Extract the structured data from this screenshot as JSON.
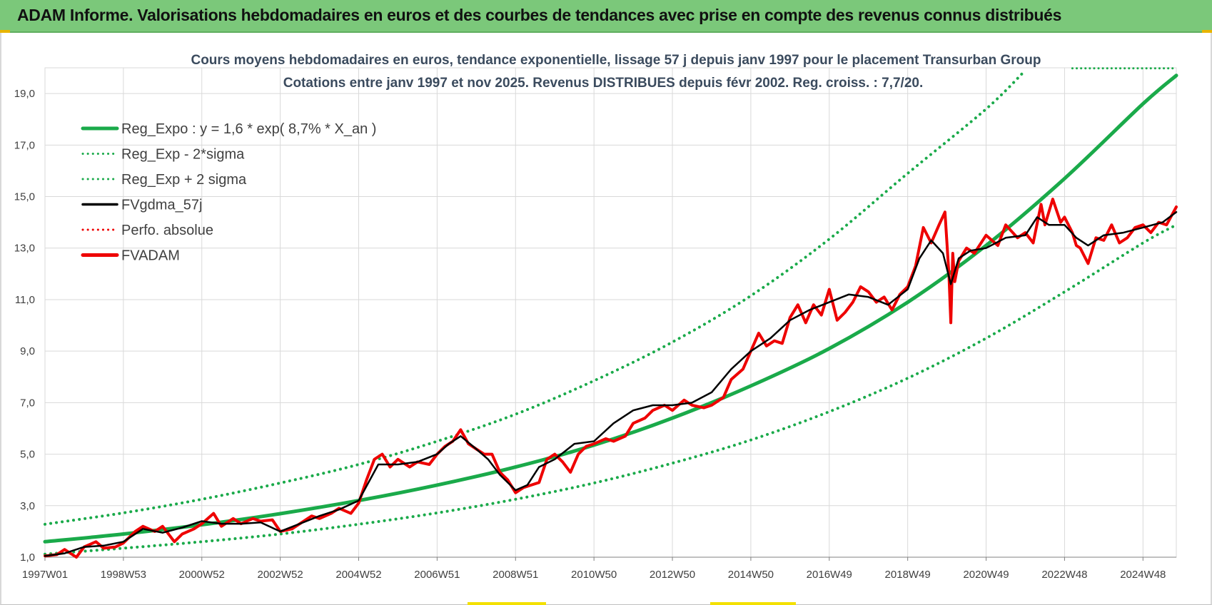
{
  "banner": {
    "title": "ADAM Informe. Valorisations hebdomadaires en euros et des courbes de tendances avec prise en compte des revenus connus distribués"
  },
  "colors": {
    "banner_bg": "#7bc87a",
    "reg_expo": "#1aaa4a",
    "fvgdma": "#000000",
    "fvadam": "#ee0000",
    "perfo": "#ee0000",
    "grid": "#d9d9d9"
  },
  "chart_data": {
    "type": "line",
    "title_line1": "Cours moyens hebdomadaires en euros, tendance exponentielle, lissage 57 j depuis janv 1997 pour le placement Transurban Group",
    "title_line2": "Cotations entre janv 1997 et nov 2025. Revenus DISTRIBUES depuis févr 2002. Reg. croiss. : 7,7/20.",
    "ylim": [
      1.0,
      20.0
    ],
    "y_ticks": [
      "1,0",
      "3,0",
      "5,0",
      "7,0",
      "9,0",
      "11,0",
      "13,0",
      "15,0",
      "17,0",
      "19,0"
    ],
    "y_tick_values": [
      1,
      3,
      5,
      7,
      9,
      11,
      13,
      15,
      17,
      19
    ],
    "x_ticks": [
      "1997W01",
      "1998W53",
      "2000W52",
      "2002W52",
      "2004W52",
      "2006W51",
      "2008W51",
      "2010W50",
      "2012W50",
      "2014W50",
      "2016W49",
      "2018W49",
      "2020W49",
      "2022W48",
      "2024W48"
    ],
    "x_tick_years": [
      1997.0,
      1999.0,
      2001.0,
      2003.0,
      2005.0,
      2007.0,
      2009.0,
      2011.0,
      2013.0,
      2015.0,
      2017.0,
      2019.0,
      2021.0,
      2023.0,
      2025.0
    ],
    "x_range_years": [
      1997.0,
      2025.85
    ],
    "grid": true,
    "legend_position": "top-left",
    "legend": [
      {
        "label": "Reg_Expo : y = 1,6 * exp( 8,7% *  X_an )",
        "style": "solid-thick",
        "color": "#1aaa4a"
      },
      {
        "label": "Reg_Exp - 2*sigma",
        "style": "dotted",
        "color": "#1aaa4a"
      },
      {
        "label": "Reg_Exp + 2 sigma",
        "style": "dotted",
        "color": "#1aaa4a"
      },
      {
        "label": "FVgdma_57j",
        "style": "solid",
        "color": "#000000"
      },
      {
        "label": "Perfo. absolue",
        "style": "dotted",
        "color": "#ee0000"
      },
      {
        "label": "FVADAM",
        "style": "solid-thick",
        "color": "#ee0000"
      }
    ],
    "series": [
      {
        "name": "Reg_Expo : y = 1,6 * exp( 8,7% *  X_an )",
        "x": [
          1997,
          1999,
          2001,
          2003,
          2005,
          2007,
          2009,
          2011,
          2013,
          2015,
          2017,
          2019,
          2021,
          2023,
          2025,
          2025.85
        ],
        "values": [
          1.6,
          1.9,
          2.26,
          2.69,
          3.2,
          3.8,
          4.5,
          5.35,
          6.4,
          7.65,
          9.1,
          10.9,
          13.1,
          15.7,
          18.6,
          19.7
        ]
      },
      {
        "name": "Reg_Exp - 2*sigma",
        "x": [
          1997,
          1999,
          2001,
          2003,
          2005,
          2007,
          2009,
          2011,
          2013,
          2015,
          2017,
          2019,
          2021,
          2023,
          2025,
          2025.85
        ],
        "values": [
          1.12,
          1.35,
          1.6,
          1.9,
          2.28,
          2.72,
          3.25,
          3.88,
          4.65,
          5.55,
          6.65,
          7.95,
          9.5,
          11.3,
          13.2,
          13.9
        ]
      },
      {
        "name": "Reg_Exp + 2 sigma",
        "x": [
          1997,
          1999,
          2001,
          2003,
          2005,
          2007,
          2009,
          2011,
          2013,
          2015,
          2017,
          2019,
          2021,
          2022.0
        ],
        "values": [
          2.28,
          2.72,
          3.25,
          3.88,
          4.6,
          5.5,
          6.55,
          7.85,
          9.35,
          11.15,
          13.35,
          15.9,
          18.4,
          19.9
        ]
      },
      {
        "name": "Reg_Exp + 2 sigma (top)",
        "x": [
          2023.2,
          2025.85
        ],
        "values": [
          19.98,
          19.98
        ]
      },
      {
        "name": "FVgdma_57j",
        "x": [
          1997.0,
          1997.5,
          1998.0,
          1998.5,
          1999.0,
          1999.5,
          2000.0,
          2000.5,
          2001.0,
          2001.5,
          2002.0,
          2002.5,
          2003.0,
          2003.5,
          2004.0,
          2004.5,
          2005.0,
          2005.5,
          2006.0,
          2006.5,
          2007.0,
          2007.3,
          2007.6,
          2008.0,
          2008.3,
          2008.6,
          2009.0,
          2009.3,
          2009.6,
          2010.0,
          2010.5,
          2011.0,
          2011.5,
          2012.0,
          2012.5,
          2013.0,
          2013.5,
          2014.0,
          2014.5,
          2015.0,
          2015.5,
          2016.0,
          2016.5,
          2017.0,
          2017.5,
          2018.0,
          2018.5,
          2019.0,
          2019.3,
          2019.6,
          2019.9,
          2020.1,
          2020.3,
          2020.6,
          2021.0,
          2021.5,
          2022.0,
          2022.3,
          2022.6,
          2023.0,
          2023.3,
          2023.6,
          2024.0,
          2024.5,
          2025.0,
          2025.5,
          2025.85
        ],
        "values": [
          1.05,
          1.15,
          1.4,
          1.45,
          1.6,
          2.1,
          1.95,
          2.15,
          2.4,
          2.3,
          2.3,
          2.35,
          2.0,
          2.3,
          2.6,
          2.85,
          3.2,
          4.6,
          4.6,
          4.7,
          5.0,
          5.4,
          5.7,
          5.2,
          4.8,
          4.2,
          3.6,
          3.8,
          4.5,
          4.8,
          5.4,
          5.5,
          6.2,
          6.7,
          6.9,
          6.9,
          7.0,
          7.4,
          8.3,
          9.0,
          9.5,
          10.2,
          10.6,
          10.9,
          11.2,
          11.1,
          10.8,
          11.4,
          12.6,
          13.3,
          12.8,
          11.6,
          12.6,
          12.9,
          13.0,
          13.4,
          13.5,
          14.2,
          13.9,
          13.9,
          13.4,
          13.1,
          13.5,
          13.6,
          13.8,
          14.0,
          14.4
        ]
      },
      {
        "name": "FVADAM",
        "x": [
          1997.0,
          1997.3,
          1997.5,
          1997.8,
          1998.0,
          1998.3,
          1998.5,
          1998.8,
          1999.0,
          1999.3,
          1999.5,
          1999.8,
          2000.0,
          2000.3,
          2000.5,
          2000.8,
          2001.0,
          2001.3,
          2001.5,
          2001.8,
          2002.0,
          2002.3,
          2002.5,
          2002.8,
          2003.0,
          2003.3,
          2003.5,
          2003.8,
          2004.0,
          2004.3,
          2004.5,
          2004.8,
          2005.0,
          2005.2,
          2005.4,
          2005.6,
          2005.8,
          2006.0,
          2006.3,
          2006.5,
          2006.8,
          2007.0,
          2007.2,
          2007.4,
          2007.6,
          2007.8,
          2008.0,
          2008.2,
          2008.4,
          2008.6,
          2008.8,
          2009.0,
          2009.2,
          2009.4,
          2009.6,
          2009.8,
          2010.0,
          2010.2,
          2010.4,
          2010.6,
          2010.8,
          2011.0,
          2011.3,
          2011.5,
          2011.8,
          2012.0,
          2012.3,
          2012.5,
          2012.8,
          2013.0,
          2013.3,
          2013.5,
          2013.8,
          2014.0,
          2014.3,
          2014.5,
          2014.8,
          2015.0,
          2015.2,
          2015.4,
          2015.6,
          2015.8,
          2016.0,
          2016.2,
          2016.4,
          2016.6,
          2016.8,
          2017.0,
          2017.2,
          2017.4,
          2017.6,
          2017.8,
          2018.0,
          2018.2,
          2018.4,
          2018.6,
          2018.8,
          2019.0,
          2019.2,
          2019.4,
          2019.6,
          2019.8,
          2019.95,
          2020.05,
          2020.1,
          2020.15,
          2020.2,
          2020.3,
          2020.5,
          2020.7,
          2021.0,
          2021.3,
          2021.5,
          2021.8,
          2022.0,
          2022.2,
          2022.4,
          2022.5,
          2022.7,
          2022.9,
          2023.0,
          2023.2,
          2023.3,
          2023.4,
          2023.6,
          2023.8,
          2024.0,
          2024.2,
          2024.4,
          2024.6,
          2024.8,
          2025.0,
          2025.2,
          2025.4,
          2025.6,
          2025.85
        ],
        "values": [
          1.05,
          1.1,
          1.3,
          1.0,
          1.4,
          1.6,
          1.35,
          1.4,
          1.55,
          2.0,
          2.2,
          2.0,
          2.2,
          1.6,
          1.9,
          2.1,
          2.3,
          2.7,
          2.2,
          2.5,
          2.3,
          2.5,
          2.4,
          2.45,
          2.0,
          2.1,
          2.3,
          2.6,
          2.5,
          2.7,
          2.9,
          2.7,
          3.1,
          4.0,
          4.8,
          5.0,
          4.5,
          4.8,
          4.5,
          4.7,
          4.6,
          5.0,
          5.3,
          5.5,
          5.95,
          5.4,
          5.2,
          5.0,
          5.0,
          4.3,
          4.0,
          3.5,
          3.7,
          3.8,
          3.9,
          4.8,
          5.0,
          4.7,
          4.3,
          5.0,
          5.3,
          5.4,
          5.6,
          5.5,
          5.7,
          6.2,
          6.4,
          6.7,
          6.9,
          6.7,
          7.1,
          6.9,
          6.8,
          6.9,
          7.2,
          7.9,
          8.3,
          9.0,
          9.7,
          9.2,
          9.4,
          9.3,
          10.3,
          10.8,
          10.1,
          10.8,
          10.4,
          11.4,
          10.2,
          10.5,
          10.9,
          11.5,
          11.3,
          10.9,
          11.1,
          10.6,
          11.2,
          11.5,
          12.3,
          13.8,
          13.2,
          13.9,
          14.4,
          12.0,
          10.1,
          12.8,
          11.7,
          12.5,
          13.0,
          12.8,
          13.5,
          13.1,
          13.9,
          13.4,
          13.6,
          13.2,
          14.7,
          13.9,
          14.9,
          14.0,
          14.2,
          13.6,
          13.1,
          13.0,
          12.4,
          13.4,
          13.3,
          13.9,
          13.2,
          13.4,
          13.8,
          13.9,
          13.6,
          14.0,
          13.9,
          14.6
        ]
      }
    ]
  }
}
